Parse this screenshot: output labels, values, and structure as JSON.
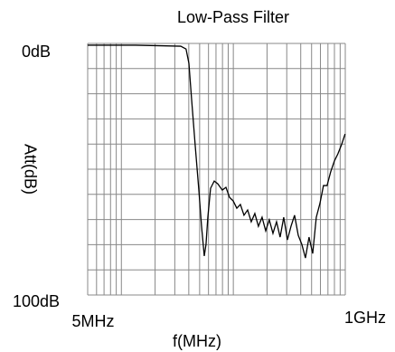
{
  "chart_data": {
    "type": "line",
    "title": "Low-Pass Filter",
    "xlabel": "f(MHz)",
    "ylabel": "Att(dB)",
    "x_log": true,
    "y_inverted": true,
    "grid": true,
    "color": "#000000",
    "grid_color": "#888888",
    "xlim": [
      5,
      1000
    ],
    "ylim": [
      0,
      100
    ],
    "xticks": [
      {
        "value": 5,
        "label": "5MHz"
      },
      {
        "value": 1000,
        "label": "1GHz"
      }
    ],
    "yticks": [
      {
        "value": 0,
        "label": "0dB"
      },
      {
        "value": 100,
        "label": "100dB"
      }
    ],
    "xgrid": [
      5,
      6,
      7,
      8,
      9,
      10,
      20,
      30,
      40,
      50,
      60,
      70,
      80,
      90,
      100,
      200,
      300,
      400,
      500,
      600,
      700,
      800,
      900,
      1000
    ],
    "ygrid": [
      0,
      10,
      20,
      30,
      40,
      50,
      60,
      70,
      80,
      90,
      100
    ],
    "x": [
      5,
      13.4,
      33.9,
      37.8,
      40.1,
      42.4,
      45.6,
      49.2,
      52.0,
      55.0,
      57.0,
      59.2,
      62.6,
      67.5,
      72.6,
      79.7,
      85.9,
      92.5,
      99.7,
      107.4,
      115.6,
      124.5,
      134.2,
      144.5,
      155.6,
      167.5,
      180.6,
      194.6,
      209.4,
      225.9,
      243.2,
      261.8,
      281.9,
      304.1,
      327.4,
      352.4,
      380.1,
      409.2,
      440.6,
      474.3,
      511.7,
      550.8,
      593.0,
      638.4,
      687.3,
      739.9,
      798.0,
      859.1,
      924.9,
      995.8
    ],
    "values": [
      0.7,
      0.7,
      1.1,
      2.2,
      7.9,
      22.3,
      40.3,
      58.3,
      72.7,
      84.5,
      79.9,
      69.1,
      57.6,
      54.7,
      55.8,
      58.3,
      57.2,
      61.2,
      62.6,
      65.5,
      64.0,
      68.3,
      66.2,
      70.9,
      67.6,
      72.7,
      69.1,
      74.5,
      70.1,
      75.5,
      70.9,
      77.0,
      69.1,
      78.1,
      72.7,
      68.3,
      76.3,
      79.9,
      85.3,
      77.0,
      83.5,
      69.1,
      63.7,
      56.5,
      56.5,
      51.1,
      46.8,
      43.9,
      40.3,
      36.0
    ]
  }
}
